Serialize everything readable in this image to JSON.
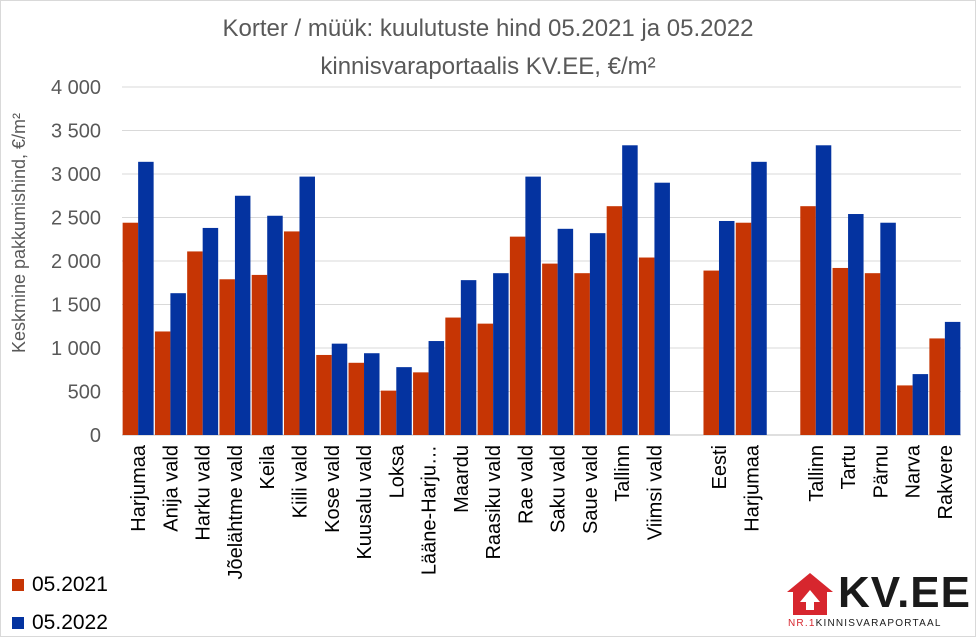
{
  "chart_data": {
    "type": "bar",
    "title_line1": "Korter / müük: kuulutuste hind 05.2021 ja 05.2022",
    "title_line2": "kinnisvaraportaalis KV.EE, €/m²",
    "ylabel": "Keskmine pakkumishind, €/m²",
    "xlabel": "",
    "ylim": [
      0,
      4000
    ],
    "yticks": [
      0,
      500,
      1000,
      1500,
      2000,
      2500,
      3000,
      3500,
      4000
    ],
    "ytick_labels": [
      "0",
      "500",
      "1 000",
      "1 500",
      "2 000",
      "2 500",
      "3 000",
      "3 500",
      "4 000"
    ],
    "grid": true,
    "legend_placement": "bottom-left",
    "categories": [
      "Harjumaa",
      "Anija vald",
      "Harku vald",
      "Jõelähtme vald",
      "Keila",
      "Kiili vald",
      "Kose vald",
      "Kuusalu vald",
      "Loksa",
      "Lääne-Harju…",
      "Maardu",
      "Raasiku vald",
      "Rae vald",
      "Saku vald",
      "Saue vald",
      "Tallinn",
      "Viimsi vald",
      "",
      "Eesti",
      "Harjumaa",
      "",
      "Tallinn",
      "Tartu",
      "Pärnu",
      "Narva",
      "Rakvere"
    ],
    "series": [
      {
        "name": "05.2021",
        "color": "#c63504",
        "values": [
          2440,
          1190,
          2110,
          1790,
          1840,
          2340,
          920,
          830,
          510,
          720,
          1350,
          1280,
          2280,
          1970,
          1860,
          2630,
          2040,
          null,
          1890,
          2440,
          null,
          2630,
          1920,
          1860,
          570,
          1110
        ]
      },
      {
        "name": "05.2022",
        "color": "#0433a0",
        "values": [
          3140,
          1630,
          2380,
          2750,
          2520,
          2970,
          1050,
          940,
          780,
          1080,
          1780,
          1860,
          2970,
          2370,
          2320,
          3330,
          2900,
          null,
          2460,
          3140,
          null,
          3330,
          2540,
          2440,
          700,
          1300
        ]
      }
    ]
  },
  "legend": [
    {
      "label": "05.2021",
      "color": "#c63504"
    },
    {
      "label": "05.2022",
      "color": "#0433a0"
    }
  ],
  "logo": {
    "text": "KV.EE",
    "tagline_nr": "NR.1",
    "tagline_rest": "KINNISVARAPORTAAL",
    "icon": "house-arrow-icon",
    "brand_color": "#d7262e"
  }
}
